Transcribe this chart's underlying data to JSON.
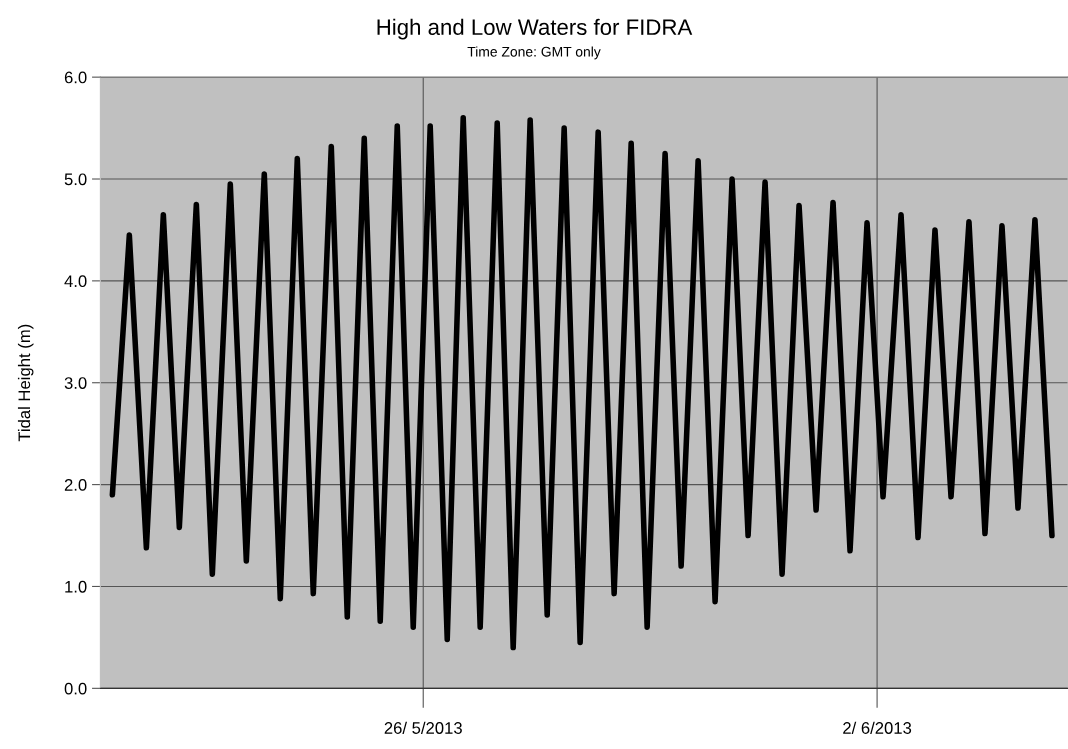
{
  "chart_data": {
    "type": "line",
    "title": "High and Low Waters for FIDRA",
    "subtitle": "Time Zone: GMT only",
    "ylabel": "Tidal Height (m)",
    "x": [
      "2013-05-21T04:56",
      "2013-05-21T11:13",
      "2013-05-21T17:31",
      "2013-05-21T23:48",
      "2013-05-22T05:43",
      "2013-05-22T12:01",
      "2013-05-22T17:56",
      "2013-05-23T00:35",
      "2013-05-23T06:31",
      "2013-05-23T13:10",
      "2013-05-23T19:05",
      "2013-05-24T01:23",
      "2013-05-24T07:18",
      "2013-05-24T13:58",
      "2013-05-24T19:53",
      "2013-05-25T02:10",
      "2013-05-25T08:05",
      "2013-05-25T14:23",
      "2013-05-25T20:18",
      "2013-05-26T02:35",
      "2013-05-26T08:53",
      "2013-05-26T14:48",
      "2013-05-26T21:05",
      "2013-05-27T03:23",
      "2013-05-27T09:18",
      "2013-05-27T15:35",
      "2013-05-27T21:53",
      "2013-05-28T04:10",
      "2013-05-28T10:05",
      "2013-05-28T16:45",
      "2013-05-28T22:40",
      "2013-05-29T04:58",
      "2013-05-29T10:53",
      "2013-05-29T17:32",
      "2013-05-29T23:28",
      "2013-05-30T05:45",
      "2013-05-30T12:02",
      "2013-05-30T18:20",
      "2013-05-31T00:15",
      "2013-05-31T06:32",
      "2013-05-31T12:50",
      "2013-05-31T19:07",
      "2013-06-01T01:25",
      "2013-06-01T07:42",
      "2013-06-01T13:59",
      "2013-06-01T20:17",
      "2013-06-02T02:12",
      "2013-06-02T08:52",
      "2013-06-02T15:09",
      "2013-06-02T21:26",
      "2013-06-03T03:22",
      "2013-06-03T10:01",
      "2013-06-03T15:56",
      "2013-06-03T22:14",
      "2013-06-04T04:09",
      "2013-06-04T10:26",
      "2013-06-04T16:44"
    ],
    "series": [
      {
        "color": "#000000",
        "values": [
          1.9,
          4.45,
          1.38,
          4.65,
          1.58,
          4.75,
          1.12,
          4.95,
          1.25,
          5.05,
          0.88,
          5.2,
          0.93,
          5.32,
          0.7,
          5.4,
          0.66,
          5.52,
          0.6,
          5.52,
          0.48,
          5.6,
          0.6,
          5.55,
          0.4,
          5.58,
          0.72,
          5.5,
          0.45,
          5.46,
          0.93,
          5.35,
          0.6,
          5.25,
          1.2,
          5.18,
          0.85,
          5.0,
          1.5,
          4.97,
          1.12,
          4.74,
          1.75,
          4.77,
          1.35,
          4.57,
          1.88,
          4.65,
          1.48,
          4.5,
          1.88,
          4.58,
          1.52,
          4.54,
          1.77,
          4.6,
          1.5
        ]
      }
    ],
    "xlim": [
      "2013-05-21T00:30",
      "2013-06-04T22:40"
    ],
    "xticks": [
      {
        "value": "2013-05-26",
        "label": "26/ 5/2013"
      },
      {
        "value": "2013-06-02",
        "label": "2/ 6/2013"
      }
    ],
    "ylim": [
      0,
      6
    ],
    "yticks": [
      {
        "value": 0,
        "label": "0.0"
      },
      {
        "value": 1,
        "label": "1.0"
      },
      {
        "value": 2,
        "label": "2.0"
      },
      {
        "value": 3,
        "label": "3.0"
      },
      {
        "value": 4,
        "label": "4.0"
      },
      {
        "value": 5,
        "label": "5.0"
      },
      {
        "value": 6,
        "label": "6.0"
      }
    ],
    "grid": true,
    "legend": false,
    "marker": "none",
    "line_style": "solid"
  }
}
